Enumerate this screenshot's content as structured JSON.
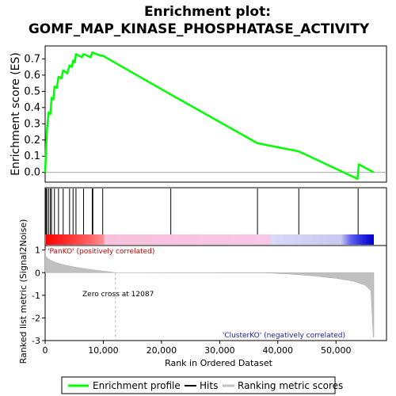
{
  "title_line1": "Enrichment plot:",
  "title_line2": "GOMF_MAP_KINASE_PHOSPHATASE_ACTIVITY",
  "colors": {
    "profile": "#00ff00",
    "hits": "#000000",
    "metric_fill": "#c0c0c0",
    "pos_label": "#c00000",
    "neg_label": "#1a1aa0"
  },
  "chart_data": {
    "type": "line",
    "x_max": 56500,
    "panels": {
      "es": {
        "ylabel": "Enrichment score (ES)",
        "ylim": [
          -0.06,
          0.78
        ],
        "yticks": [
          0.0,
          0.1,
          0.2,
          0.3,
          0.4,
          0.5,
          0.6,
          0.7
        ],
        "ytick_labels": [
          "0.0",
          "0.1",
          "0.2",
          "0.3",
          "0.4",
          "0.5",
          "0.6",
          "0.7"
        ],
        "series_name": "Enrichment profile",
        "points": [
          [
            0,
            0.0
          ],
          [
            150,
            0.13
          ],
          [
            300,
            0.26
          ],
          [
            600,
            0.37
          ],
          [
            900,
            0.36
          ],
          [
            1100,
            0.46
          ],
          [
            1400,
            0.45
          ],
          [
            1600,
            0.53
          ],
          [
            2000,
            0.52
          ],
          [
            2300,
            0.59
          ],
          [
            2800,
            0.58
          ],
          [
            3100,
            0.63
          ],
          [
            3800,
            0.61
          ],
          [
            4200,
            0.66
          ],
          [
            4600,
            0.65
          ],
          [
            4800,
            0.69
          ],
          [
            5100,
            0.68
          ],
          [
            5300,
            0.73
          ],
          [
            6300,
            0.71
          ],
          [
            6600,
            0.73
          ],
          [
            7800,
            0.71
          ],
          [
            8100,
            0.74
          ],
          [
            9500,
            0.72
          ],
          [
            9900,
            0.72
          ],
          [
            21600,
            0.48
          ],
          [
            36500,
            0.18
          ],
          [
            43600,
            0.13
          ],
          [
            53700,
            -0.04
          ],
          [
            53900,
            0.05
          ],
          [
            56500,
            0.0
          ]
        ]
      },
      "hits": {
        "positions": [
          150,
          300,
          600,
          900,
          1100,
          1600,
          2300,
          3100,
          4200,
          4800,
          5300,
          6600,
          8100,
          8200,
          9900,
          21600,
          36500,
          43600,
          53800
        ]
      },
      "metric": {
        "ylabel": "Ranked list metric (Signal2Noise)",
        "xlabel": "Rank in Ordered Dataset",
        "ylim": [
          -3,
          1.2
        ],
        "yticks": [
          -3,
          -2,
          -1,
          0,
          1
        ],
        "ytick_labels": [
          "-3",
          "-2",
          "-1",
          "0",
          "1"
        ],
        "xticks": [
          0,
          10000,
          20000,
          30000,
          40000,
          50000
        ],
        "xtick_labels": [
          "0",
          "10,000",
          "20,000",
          "30,000",
          "40,000",
          "50,000"
        ],
        "zero_cross": 12087,
        "profile": [
          [
            0,
            1.0
          ],
          [
            100,
            0.75
          ],
          [
            500,
            0.62
          ],
          [
            1500,
            0.48
          ],
          [
            3000,
            0.36
          ],
          [
            5000,
            0.25
          ],
          [
            7000,
            0.17
          ],
          [
            9000,
            0.1
          ],
          [
            11000,
            0.04
          ],
          [
            12087,
            0.0
          ],
          [
            38000,
            -0.01
          ],
          [
            42000,
            -0.06
          ],
          [
            46000,
            -0.14
          ],
          [
            50000,
            -0.25
          ],
          [
            53000,
            -0.38
          ],
          [
            55000,
            -0.55
          ],
          [
            56000,
            -0.8
          ],
          [
            56400,
            -2.85
          ],
          [
            56500,
            -2.85
          ]
        ]
      }
    },
    "annotations": {
      "pos": "'PanKO' (positively correlated)",
      "neg": "'ClusterKO' (negatively correlated)",
      "zero_cross": "Zero cross at 12087"
    },
    "legend": {
      "items": [
        {
          "label": "Enrichment profile",
          "color": "#00ff00"
        },
        {
          "label": "Hits",
          "color": "#000000"
        },
        {
          "label": "Ranking metric scores",
          "color": "#c0c0c0"
        }
      ]
    }
  }
}
